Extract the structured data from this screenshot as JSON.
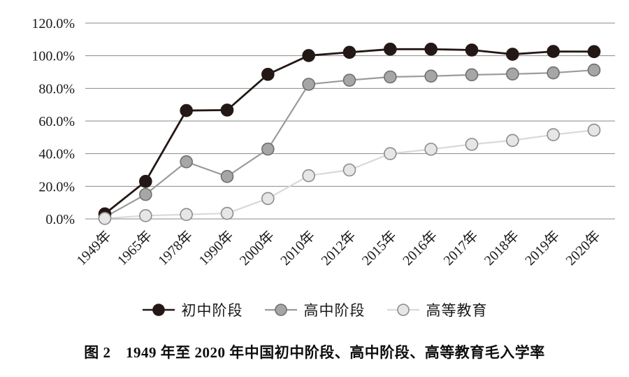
{
  "chart_data": {
    "type": "line",
    "caption": "图 2　1949 年至 2020 年中国初中阶段、高中阶段、高等教育毛入学率",
    "categories": [
      "1949年",
      "1965年",
      "1978年",
      "1990年",
      "2000年",
      "2010年",
      "2012年",
      "2015年",
      "2016年",
      "2017年",
      "2018年",
      "2019年",
      "2020年"
    ],
    "series": [
      {
        "name": "初中阶段",
        "values": [
          3.1,
          23.0,
          66.4,
          66.7,
          88.6,
          100.1,
          102.1,
          104.0,
          104.0,
          103.5,
          100.9,
          102.6,
          102.5
        ],
        "line_color": "#231815",
        "marker_fill": "#231815",
        "marker_stroke": "#231815"
      },
      {
        "name": "高中阶段",
        "values": [
          1.1,
          15.0,
          35.0,
          26.0,
          42.8,
          82.5,
          85.0,
          87.0,
          87.5,
          88.3,
          88.8,
          89.5,
          91.2
        ],
        "line_color": "#9b9b9b",
        "marker_fill": "#a6a6a6",
        "marker_stroke": "#6f6f6f"
      },
      {
        "name": "高等教育",
        "values": [
          0.3,
          2.0,
          2.7,
          3.4,
          12.5,
          26.5,
          30.0,
          40.0,
          42.7,
          45.7,
          48.1,
          51.6,
          54.4
        ],
        "line_color": "#d9d9d9",
        "marker_fill": "#e6e6e6",
        "marker_stroke": "#8c8c8c"
      }
    ],
    "y_axis": {
      "min": 0,
      "max": 120,
      "step": 20,
      "tick_labels": [
        "0.0%",
        "20.0%",
        "40.0%",
        "60.0%",
        "80.0%",
        "100.0%",
        "120.0%"
      ]
    },
    "grid": true,
    "gridline_color": "#8a8a8a",
    "legend_position": "bottom",
    "draw_order": [
      1,
      0,
      2
    ],
    "xlabel": "",
    "ylabel": "",
    "title": ""
  }
}
